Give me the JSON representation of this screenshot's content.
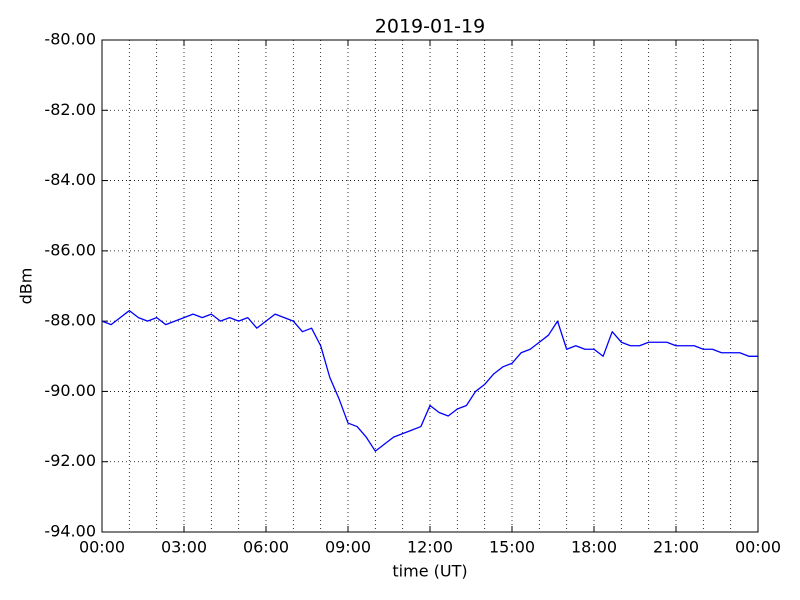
{
  "chart_data": {
    "type": "line",
    "title": "2019-01-19",
    "x_label": "time (UT)",
    "y_label": "dBm",
    "x": [
      0,
      20,
      40,
      60,
      80,
      100,
      120,
      140,
      160,
      180,
      200,
      220,
      240,
      260,
      280,
      300,
      320,
      340,
      360,
      380,
      400,
      420,
      440,
      460,
      480,
      500,
      520,
      540,
      560,
      580,
      600,
      620,
      640,
      660,
      680,
      700,
      720,
      740,
      760,
      780,
      800,
      820,
      840,
      860,
      880,
      900,
      920,
      940,
      960,
      980,
      1000,
      1020,
      1040,
      1060,
      1080,
      1100,
      1120,
      1140,
      1160,
      1180,
      1200,
      1220,
      1240,
      1260,
      1280,
      1300,
      1320,
      1340,
      1360,
      1380,
      1400,
      1420,
      1440
    ],
    "series": [
      {
        "name": "dBm",
        "color": "#0000ff",
        "values": [
          -88.0,
          -88.1,
          -87.9,
          -87.7,
          -87.9,
          -88.0,
          -87.9,
          -88.1,
          -88.0,
          -87.9,
          -87.8,
          -87.9,
          -87.8,
          -88.0,
          -87.9,
          -88.0,
          -87.9,
          -88.2,
          -88.0,
          -87.8,
          -87.9,
          -88.0,
          -88.3,
          -88.2,
          -88.7,
          -89.6,
          -90.2,
          -90.9,
          -91.0,
          -91.3,
          -91.7,
          -91.5,
          -91.3,
          -91.2,
          -91.1,
          -91.0,
          -90.4,
          -90.6,
          -90.7,
          -90.5,
          -90.4,
          -90.0,
          -89.8,
          -89.5,
          -89.3,
          -89.2,
          -88.9,
          -88.8,
          -88.6,
          -88.4,
          -88.0,
          -88.8,
          -88.7,
          -88.8,
          -88.8,
          -89.0,
          -88.3,
          -88.6,
          -88.7,
          -88.7,
          -88.6,
          -88.6,
          -88.6,
          -88.7,
          -88.7,
          -88.7,
          -88.8,
          -88.8,
          -88.9,
          -88.9,
          -88.9,
          -89.0,
          -89.0
        ]
      }
    ],
    "xlim": [
      0,
      1440
    ],
    "xticks": [
      {
        "value": 0,
        "label": "00:00"
      },
      {
        "value": 180,
        "label": "03:00"
      },
      {
        "value": 360,
        "label": "06:00"
      },
      {
        "value": 540,
        "label": "09:00"
      },
      {
        "value": 720,
        "label": "12:00"
      },
      {
        "value": 900,
        "label": "15:00"
      },
      {
        "value": 1080,
        "label": "18:00"
      },
      {
        "value": 1260,
        "label": "21:00"
      },
      {
        "value": 1440,
        "label": "00:00"
      }
    ],
    "xminorticks": [
      60,
      120,
      240,
      300,
      420,
      480,
      600,
      660,
      780,
      840,
      960,
      1020,
      1140,
      1200,
      1320,
      1380
    ],
    "ylim": [
      -94,
      -80
    ],
    "yticks": [
      {
        "value": -94,
        "label": "-94.00"
      },
      {
        "value": -92,
        "label": "-92.00"
      },
      {
        "value": -90,
        "label": "-90.00"
      },
      {
        "value": -88,
        "label": "-88.00"
      },
      {
        "value": -86,
        "label": "-86.00"
      },
      {
        "value": -84,
        "label": "-84.00"
      },
      {
        "value": -82,
        "label": "-82.00"
      },
      {
        "value": -80,
        "label": "-80.00"
      }
    ],
    "grid": true
  }
}
